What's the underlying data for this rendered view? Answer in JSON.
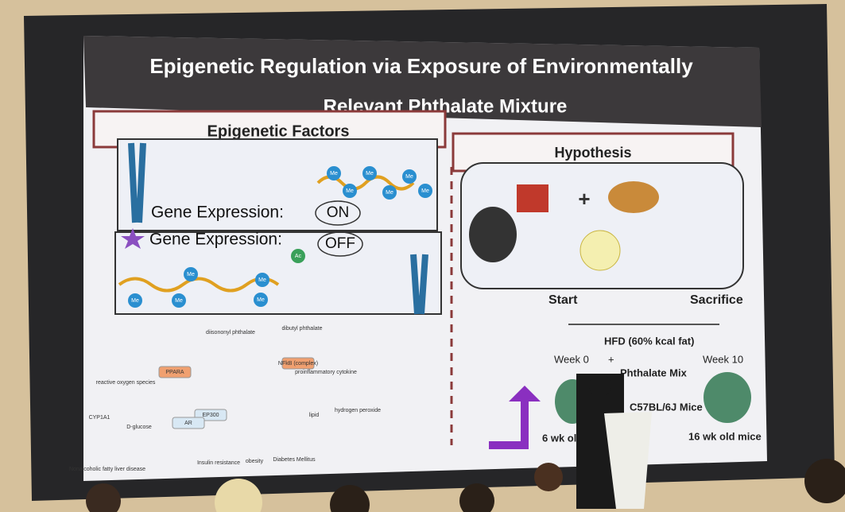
{
  "slide": {
    "title_lines": [
      "Epigenetic Regulation via Exposure of Environmentally",
      "Relevant Phthalate Mixture"
    ],
    "left_panel": {
      "heading": "Epigenetic Factors",
      "on_label": "Gene Expression:",
      "on_state": "ON",
      "off_label": "Gene Expression:",
      "off_state": "OFF",
      "marks": [
        "Me",
        "Me",
        "Me",
        "Me",
        "Me",
        "Me",
        "Ac",
        "Me",
        "Me",
        "Me",
        "Me",
        "Me"
      ]
    },
    "right_panel": {
      "heading": "Hypothesis",
      "start": "Start",
      "end": "Sacrifice",
      "diet": "HFD (60% kcal fat)",
      "week_start": "Week 0",
      "plus": "+",
      "mix": "Phthalate Mix",
      "week_end": "Week 10",
      "strain": "C57BL/6J Mice",
      "age_start": "6 wk old",
      "age_end": "16 wk old mice"
    },
    "network": {
      "nodes": [
        "PPARA",
        "reactive oxygen species",
        "CYP1A1",
        "EP300",
        "AR",
        "D-glucose",
        "NFkB (complex)",
        "proinflammatory cytokine",
        "hydrogen peroxide",
        "lipid",
        "Insulin resistance",
        "obesity",
        "Diabetes Mellitus",
        "Nonalcoholic fatty liver disease",
        "diisononyl phthalate",
        "dibutyl phthalate"
      ]
    }
  }
}
